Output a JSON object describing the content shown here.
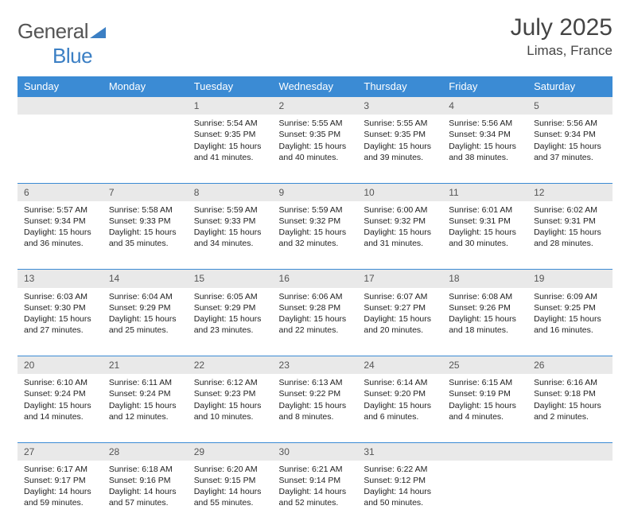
{
  "logo": {
    "part1": "General",
    "part2": "Blue"
  },
  "title": "July 2025",
  "location": "Limas, France",
  "colors": {
    "header_bg": "#3b8bd4",
    "header_fg": "#ffffff",
    "daynum_bg": "#e9e9e9",
    "border": "#3b8bd4",
    "logo_blue": "#3b7fc4",
    "text": "#222222"
  },
  "weekdays": [
    "Sunday",
    "Monday",
    "Tuesday",
    "Wednesday",
    "Thursday",
    "Friday",
    "Saturday"
  ],
  "weeks": [
    [
      null,
      null,
      {
        "n": "1",
        "sr": "5:54 AM",
        "ss": "9:35 PM",
        "dl": "15 hours and 41 minutes."
      },
      {
        "n": "2",
        "sr": "5:55 AM",
        "ss": "9:35 PM",
        "dl": "15 hours and 40 minutes."
      },
      {
        "n": "3",
        "sr": "5:55 AM",
        "ss": "9:35 PM",
        "dl": "15 hours and 39 minutes."
      },
      {
        "n": "4",
        "sr": "5:56 AM",
        "ss": "9:34 PM",
        "dl": "15 hours and 38 minutes."
      },
      {
        "n": "5",
        "sr": "5:56 AM",
        "ss": "9:34 PM",
        "dl": "15 hours and 37 minutes."
      }
    ],
    [
      {
        "n": "6",
        "sr": "5:57 AM",
        "ss": "9:34 PM",
        "dl": "15 hours and 36 minutes."
      },
      {
        "n": "7",
        "sr": "5:58 AM",
        "ss": "9:33 PM",
        "dl": "15 hours and 35 minutes."
      },
      {
        "n": "8",
        "sr": "5:59 AM",
        "ss": "9:33 PM",
        "dl": "15 hours and 34 minutes."
      },
      {
        "n": "9",
        "sr": "5:59 AM",
        "ss": "9:32 PM",
        "dl": "15 hours and 32 minutes."
      },
      {
        "n": "10",
        "sr": "6:00 AM",
        "ss": "9:32 PM",
        "dl": "15 hours and 31 minutes."
      },
      {
        "n": "11",
        "sr": "6:01 AM",
        "ss": "9:31 PM",
        "dl": "15 hours and 30 minutes."
      },
      {
        "n": "12",
        "sr": "6:02 AM",
        "ss": "9:31 PM",
        "dl": "15 hours and 28 minutes."
      }
    ],
    [
      {
        "n": "13",
        "sr": "6:03 AM",
        "ss": "9:30 PM",
        "dl": "15 hours and 27 minutes."
      },
      {
        "n": "14",
        "sr": "6:04 AM",
        "ss": "9:29 PM",
        "dl": "15 hours and 25 minutes."
      },
      {
        "n": "15",
        "sr": "6:05 AM",
        "ss": "9:29 PM",
        "dl": "15 hours and 23 minutes."
      },
      {
        "n": "16",
        "sr": "6:06 AM",
        "ss": "9:28 PM",
        "dl": "15 hours and 22 minutes."
      },
      {
        "n": "17",
        "sr": "6:07 AM",
        "ss": "9:27 PM",
        "dl": "15 hours and 20 minutes."
      },
      {
        "n": "18",
        "sr": "6:08 AM",
        "ss": "9:26 PM",
        "dl": "15 hours and 18 minutes."
      },
      {
        "n": "19",
        "sr": "6:09 AM",
        "ss": "9:25 PM",
        "dl": "15 hours and 16 minutes."
      }
    ],
    [
      {
        "n": "20",
        "sr": "6:10 AM",
        "ss": "9:24 PM",
        "dl": "15 hours and 14 minutes."
      },
      {
        "n": "21",
        "sr": "6:11 AM",
        "ss": "9:24 PM",
        "dl": "15 hours and 12 minutes."
      },
      {
        "n": "22",
        "sr": "6:12 AM",
        "ss": "9:23 PM",
        "dl": "15 hours and 10 minutes."
      },
      {
        "n": "23",
        "sr": "6:13 AM",
        "ss": "9:22 PM",
        "dl": "15 hours and 8 minutes."
      },
      {
        "n": "24",
        "sr": "6:14 AM",
        "ss": "9:20 PM",
        "dl": "15 hours and 6 minutes."
      },
      {
        "n": "25",
        "sr": "6:15 AM",
        "ss": "9:19 PM",
        "dl": "15 hours and 4 minutes."
      },
      {
        "n": "26",
        "sr": "6:16 AM",
        "ss": "9:18 PM",
        "dl": "15 hours and 2 minutes."
      }
    ],
    [
      {
        "n": "27",
        "sr": "6:17 AM",
        "ss": "9:17 PM",
        "dl": "14 hours and 59 minutes."
      },
      {
        "n": "28",
        "sr": "6:18 AM",
        "ss": "9:16 PM",
        "dl": "14 hours and 57 minutes."
      },
      {
        "n": "29",
        "sr": "6:20 AM",
        "ss": "9:15 PM",
        "dl": "14 hours and 55 minutes."
      },
      {
        "n": "30",
        "sr": "6:21 AM",
        "ss": "9:14 PM",
        "dl": "14 hours and 52 minutes."
      },
      {
        "n": "31",
        "sr": "6:22 AM",
        "ss": "9:12 PM",
        "dl": "14 hours and 50 minutes."
      },
      null,
      null
    ]
  ],
  "labels": {
    "sunrise": "Sunrise: ",
    "sunset": "Sunset: ",
    "daylight": "Daylight: "
  }
}
